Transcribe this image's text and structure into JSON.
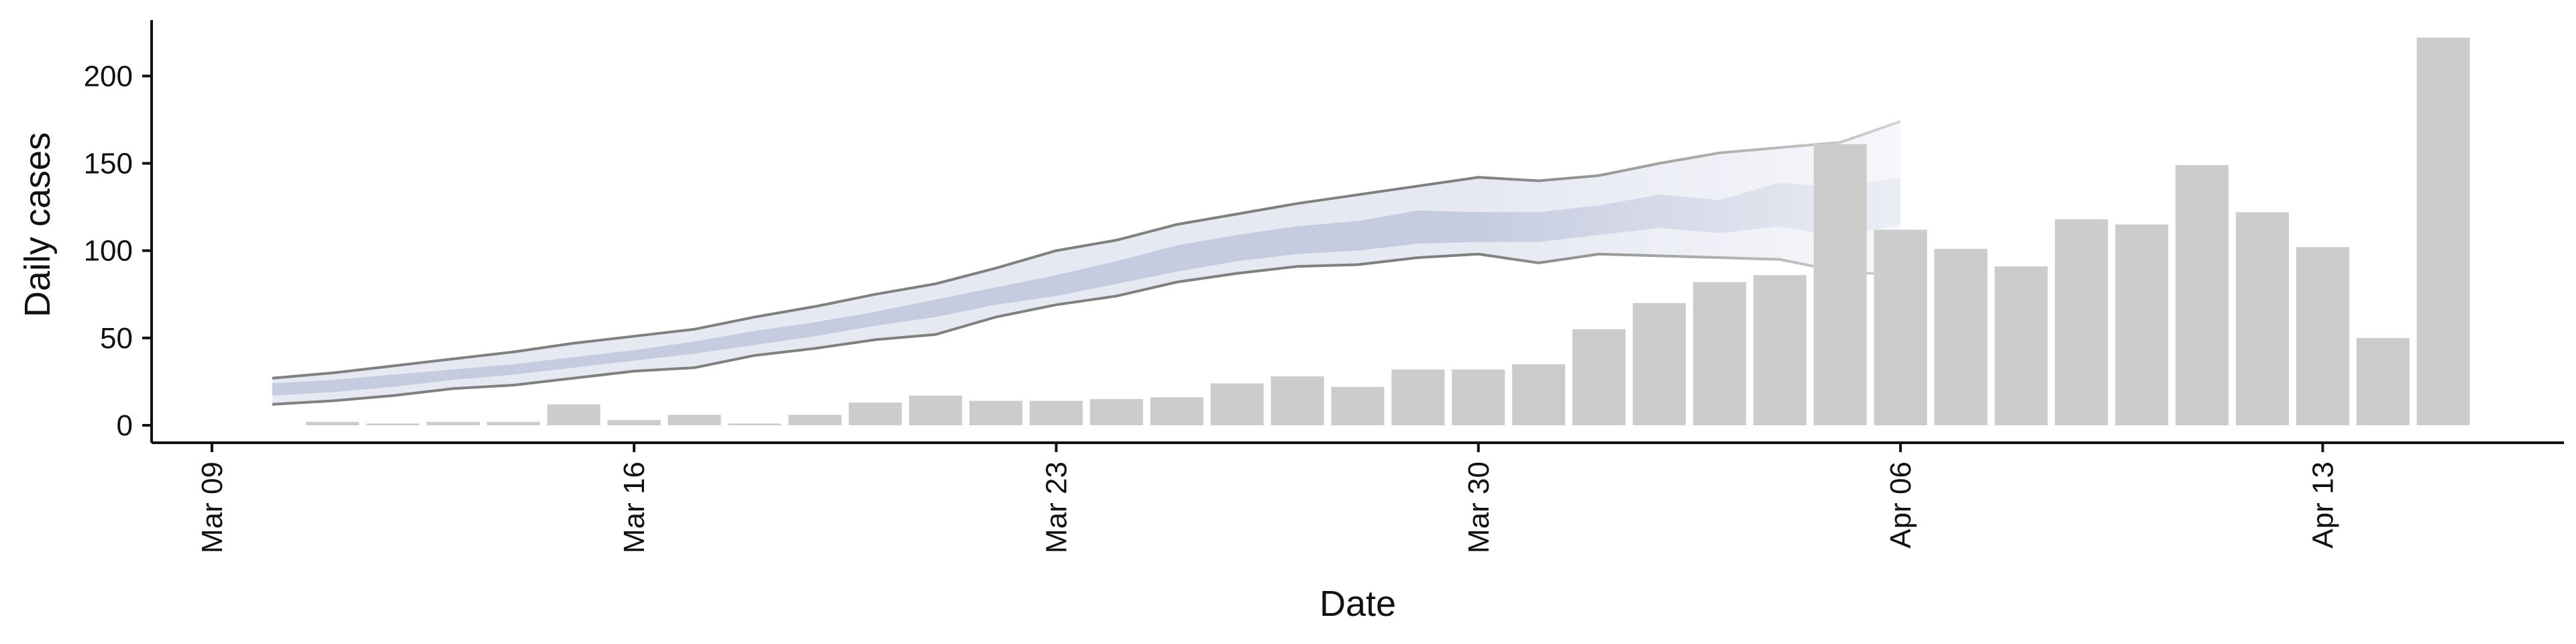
{
  "chart_data": {
    "type": "bar",
    "title": "",
    "xlabel": "Date",
    "ylabel": "Daily cases",
    "x_ticks": [
      {
        "date": "2020-03-09",
        "label": "Mar 09"
      },
      {
        "date": "2020-03-16",
        "label": "Mar 16"
      },
      {
        "date": "2020-03-23",
        "label": "Mar 23"
      },
      {
        "date": "2020-03-30",
        "label": "Mar 30"
      },
      {
        "date": "2020-04-06",
        "label": "Apr 06"
      },
      {
        "date": "2020-04-13",
        "label": "Apr 13"
      }
    ],
    "y_ticks": [
      0,
      50,
      100,
      150,
      200
    ],
    "ylim": [
      -10,
      232
    ],
    "xlim": [
      "2020-03-08",
      "2020-04-17"
    ],
    "grid": false,
    "legend": "none",
    "colors": {
      "bars": "#cccccc",
      "band_outer": "#e6e8f2",
      "band_inner": "#c6cce0",
      "band_edge": "#808080",
      "axis": "#111111"
    },
    "series": [
      {
        "kind": "bars",
        "x": [
          "2020-03-11",
          "2020-03-12",
          "2020-03-13",
          "2020-03-14",
          "2020-03-15",
          "2020-03-16",
          "2020-03-17",
          "2020-03-18",
          "2020-03-19",
          "2020-03-20",
          "2020-03-21",
          "2020-03-22",
          "2020-03-23",
          "2020-03-24",
          "2020-03-25",
          "2020-03-26",
          "2020-03-27",
          "2020-03-28",
          "2020-03-29",
          "2020-03-30",
          "2020-03-31",
          "2020-04-01",
          "2020-04-02",
          "2020-04-03",
          "2020-04-04",
          "2020-04-05",
          "2020-04-06",
          "2020-04-07",
          "2020-04-08",
          "2020-04-09",
          "2020-04-10",
          "2020-04-11",
          "2020-04-12",
          "2020-04-13",
          "2020-04-14",
          "2020-04-15"
        ],
        "values": [
          2,
          1,
          2,
          2,
          12,
          3,
          6,
          1,
          6,
          13,
          17,
          14,
          14,
          15,
          16,
          24,
          28,
          22,
          32,
          32,
          35,
          55,
          70,
          82,
          86,
          161,
          112,
          101,
          91,
          118,
          115,
          149,
          122,
          102,
          50,
          222
        ]
      },
      {
        "kind": "band",
        "x": [
          "2020-03-10",
          "2020-03-11",
          "2020-03-12",
          "2020-03-13",
          "2020-03-14",
          "2020-03-15",
          "2020-03-16",
          "2020-03-17",
          "2020-03-18",
          "2020-03-19",
          "2020-03-20",
          "2020-03-21",
          "2020-03-22",
          "2020-03-23",
          "2020-03-24",
          "2020-03-25",
          "2020-03-26",
          "2020-03-27",
          "2020-03-28",
          "2020-03-29",
          "2020-03-30",
          "2020-03-31",
          "2020-04-01",
          "2020-04-02",
          "2020-04-03",
          "2020-04-04",
          "2020-04-05",
          "2020-04-06"
        ],
        "outer_lower": [
          12,
          14,
          17,
          21,
          23,
          27,
          31,
          33,
          40,
          44,
          49,
          52,
          62,
          69,
          74,
          82,
          87,
          91,
          92,
          96,
          98,
          93,
          98,
          97,
          96,
          95,
          88,
          86
        ],
        "outer_upper": [
          27,
          30,
          34,
          38,
          42,
          47,
          51,
          55,
          62,
          68,
          75,
          81,
          90,
          100,
          106,
          115,
          121,
          127,
          132,
          137,
          142,
          140,
          143,
          150,
          156,
          159,
          162,
          174
        ],
        "inner_lower": [
          17,
          19,
          22,
          26,
          29,
          33,
          37,
          41,
          46,
          51,
          57,
          62,
          69,
          74,
          81,
          88,
          94,
          98,
          100,
          104,
          105,
          105,
          109,
          113,
          110,
          114,
          108,
          115
        ],
        "inner_upper": [
          24,
          26,
          29,
          32,
          35,
          39,
          43,
          48,
          54,
          59,
          65,
          72,
          79,
          86,
          94,
          103,
          109,
          114,
          117,
          123,
          122,
          122,
          126,
          132,
          129,
          139,
          136,
          142
        ],
        "faded_from": "2020-03-30"
      }
    ]
  }
}
